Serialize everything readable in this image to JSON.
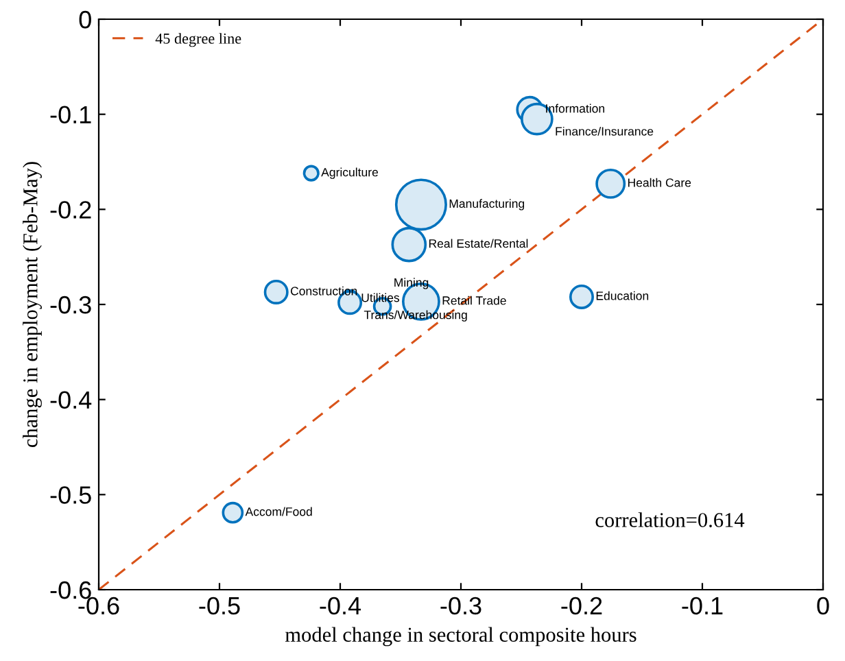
{
  "chart_data": {
    "type": "bubble",
    "xlabel": "model change in sectoral composite hours",
    "ylabel": "change in employment (Feb-May)",
    "xlim": [
      -0.6,
      0
    ],
    "ylim": [
      -0.6,
      0
    ],
    "xticks": [
      -0.6,
      -0.5,
      -0.4,
      -0.3,
      -0.2,
      -0.1,
      0
    ],
    "yticks": [
      -0.6,
      -0.5,
      -0.4,
      -0.3,
      -0.2,
      -0.1,
      0
    ],
    "grid": false,
    "legend": "top left",
    "series": [
      {
        "color": "#0072bd",
        "x": [
          -0.243,
          -0.237,
          -0.176,
          -0.424,
          -0.333,
          -0.343,
          -0.453,
          -0.392,
          -0.392,
          -0.365,
          -0.333,
          -0.2,
          -0.489
        ],
        "values": [
          -0.095,
          -0.105,
          -0.173,
          -0.162,
          -0.195,
          -0.237,
          -0.287,
          -0.294,
          -0.298,
          -0.302,
          -0.297,
          -0.292,
          -0.519
        ],
        "sizes": [
          0.25,
          0.37,
          0.31,
          0.08,
          1,
          0.44,
          0.2,
          0.11,
          0.2,
          0.11,
          0.52,
          0.2,
          0.15
        ]
      },
      {
        "type": "line",
        "name": "45 degree line",
        "color": "#d95319",
        "line_style": "dashed",
        "x": [
          -0.6,
          0
        ],
        "values": [
          -0.6,
          0
        ]
      }
    ],
    "annotations": [
      {
        "text": "Information",
        "x": -0.243,
        "y": -0.095
      },
      {
        "text": "Finance/Insurance",
        "x": -0.237,
        "y": -0.105
      },
      {
        "text": "Health Care",
        "x": -0.176,
        "y": -0.173
      },
      {
        "text": "Agriculture",
        "x": -0.424,
        "y": -0.162
      },
      {
        "text": "Manufacturing",
        "x": -0.333,
        "y": -0.195
      },
      {
        "text": "Real Estate/Rental",
        "x": -0.343,
        "y": -0.237
      },
      {
        "text": "Construction",
        "x": -0.453,
        "y": -0.287
      },
      {
        "text": "Utilities",
        "x": -0.392,
        "y": -0.294
      },
      {
        "text": "Trans/Warehousing",
        "x": -0.392,
        "y": -0.298
      },
      {
        "text": "Mining",
        "x": -0.365,
        "y": -0.302
      },
      {
        "text": "Retail Trade",
        "x": -0.333,
        "y": -0.297
      },
      {
        "text": "Education",
        "x": -0.2,
        "y": -0.292
      },
      {
        "text": "Accom/Food",
        "x": -0.489,
        "y": -0.519
      },
      "correlation=0.614"
    ]
  }
}
